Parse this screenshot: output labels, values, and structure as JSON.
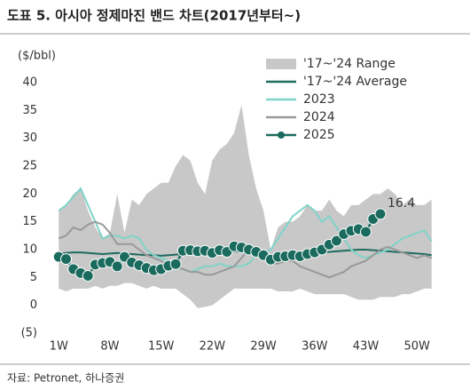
{
  "title": "도표 5. 아시아 정제마진 밴드 차트(2017년부터~)",
  "source": "자료: Petronet, 하나증권",
  "chart_data": {
    "type": "line",
    "y_label": "($/bbl)",
    "x": [
      1,
      2,
      3,
      4,
      5,
      6,
      7,
      8,
      9,
      10,
      11,
      12,
      13,
      14,
      15,
      16,
      17,
      18,
      19,
      20,
      21,
      22,
      23,
      24,
      25,
      26,
      27,
      28,
      29,
      30,
      31,
      32,
      33,
      34,
      35,
      36,
      37,
      38,
      39,
      40,
      41,
      42,
      43,
      44,
      45,
      46,
      47,
      48,
      49,
      50,
      51,
      52
    ],
    "xlim": [
      0,
      52
    ],
    "xticks": [
      {
        "value": 1,
        "label": "1W"
      },
      {
        "value": 8,
        "label": "8W"
      },
      {
        "value": 15,
        "label": "15W"
      },
      {
        "value": 22,
        "label": "22W"
      },
      {
        "value": 29,
        "label": "29W"
      },
      {
        "value": 36,
        "label": "36W"
      },
      {
        "value": 43,
        "label": "43W"
      },
      {
        "value": 50,
        "label": "50W"
      }
    ],
    "ylim": [
      -5,
      40
    ],
    "yticks": [
      {
        "value": -5,
        "label": "(5)"
      },
      0,
      5,
      10,
      15,
      20,
      25,
      30,
      35,
      40
    ],
    "grid": false,
    "legend": "upper right",
    "series": [
      {
        "name": "'17~'24 Range",
        "kind": "band",
        "color": "#c8c8c8",
        "values": [
          17,
          18,
          20,
          21,
          17,
          14,
          12,
          13,
          20,
          13,
          19,
          18,
          20,
          21,
          22,
          22,
          25,
          27,
          26,
          22,
          20,
          26,
          28,
          29,
          31,
          36,
          27,
          21,
          17,
          10,
          14,
          15,
          15,
          16,
          18,
          17,
          17,
          19,
          17,
          16,
          18,
          18,
          19,
          20,
          20,
          21,
          20,
          18,
          19,
          18,
          18,
          19
        ],
        "lower": [
          3,
          2.5,
          3,
          3,
          3,
          3.5,
          3,
          3.5,
          3.5,
          4,
          4,
          3.5,
          3,
          3.5,
          3,
          3,
          3,
          2,
          1,
          -0.5,
          -0.3,
          0,
          1,
          2,
          3,
          3,
          3,
          3,
          3,
          3,
          2.5,
          2.5,
          2.5,
          3,
          2.5,
          2,
          2,
          2,
          2,
          2,
          1.5,
          1,
          1,
          1,
          1.5,
          1.5,
          1.5,
          2,
          2,
          2.5,
          3,
          3
        ]
      },
      {
        "name": "'17~'24 Average",
        "color": "#1f6b5f",
        "values": [
          9.3,
          9.4,
          9.5,
          9.5,
          9.4,
          9.3,
          9.2,
          9.3,
          9.4,
          9.3,
          9.2,
          9.1,
          9.0,
          9.0,
          8.9,
          9.0,
          9.1,
          9.2,
          9.3,
          9.5,
          9.4,
          9.3,
          9.5,
          9.6,
          9.7,
          9.6,
          9.5,
          9.3,
          9.2,
          9.0,
          9.0,
          9.1,
          9.2,
          9.3,
          9.3,
          9.4,
          9.5,
          9.6,
          9.7,
          9.8,
          9.9,
          10.0,
          10.0,
          9.9,
          9.8,
          9.7,
          9.6,
          9.5,
          9.4,
          9.3,
          9.2,
          9.0
        ]
      },
      {
        "name": "2023",
        "color": "#7fd3c8",
        "values": [
          17,
          18,
          19.5,
          21,
          18,
          15,
          12,
          12.5,
          12.5,
          12,
          12.5,
          12,
          10,
          9,
          8.5,
          8,
          7,
          6.5,
          6,
          6.5,
          7,
          7,
          7.5,
          7,
          7,
          7,
          7.5,
          9,
          9.5,
          10,
          12,
          14,
          16,
          17,
          18,
          17,
          15,
          16,
          14,
          12,
          10,
          9,
          8.5,
          9,
          9.5,
          10,
          11,
          12,
          12.5,
          13,
          13.5,
          11.5
        ]
      },
      {
        "name": "2024",
        "color": "#999999",
        "values": [
          12,
          12.5,
          14,
          13.5,
          14.5,
          15,
          14.5,
          13,
          11,
          11,
          11,
          10,
          9,
          8.5,
          8,
          7,
          7,
          6.5,
          6,
          6,
          5.5,
          5.5,
          6,
          6.5,
          7,
          8.5,
          10,
          9.5,
          9,
          7.5,
          7.5,
          8,
          8,
          7,
          6.5,
          6,
          5.5,
          5,
          5.5,
          6,
          7,
          7.5,
          8,
          9,
          10,
          10.5,
          10,
          9.5,
          9,
          8.5,
          9,
          8.5
        ]
      },
      {
        "name": "2025",
        "color": "#1a6b5e",
        "marker": true,
        "values": [
          8.7,
          8.3,
          6.5,
          5.8,
          5.3,
          7.3,
          7.6,
          7.8,
          7.0,
          8.7,
          7.7,
          7.2,
          6.7,
          6.3,
          6.5,
          7.1,
          7.4,
          9.8,
          9.9,
          9.7,
          9.8,
          9.4,
          9.9,
          9.6,
          10.6,
          10.4,
          10.0,
          9.6,
          9.0,
          8.2,
          8.7,
          8.8,
          9.0,
          8.8,
          9.2,
          9.5,
          10.0,
          10.9,
          11.6,
          12.8,
          13.4,
          13.7,
          13.2,
          15.5,
          16.4,
          null,
          null,
          null,
          null,
          null,
          null,
          null
        ]
      }
    ]
  }
}
